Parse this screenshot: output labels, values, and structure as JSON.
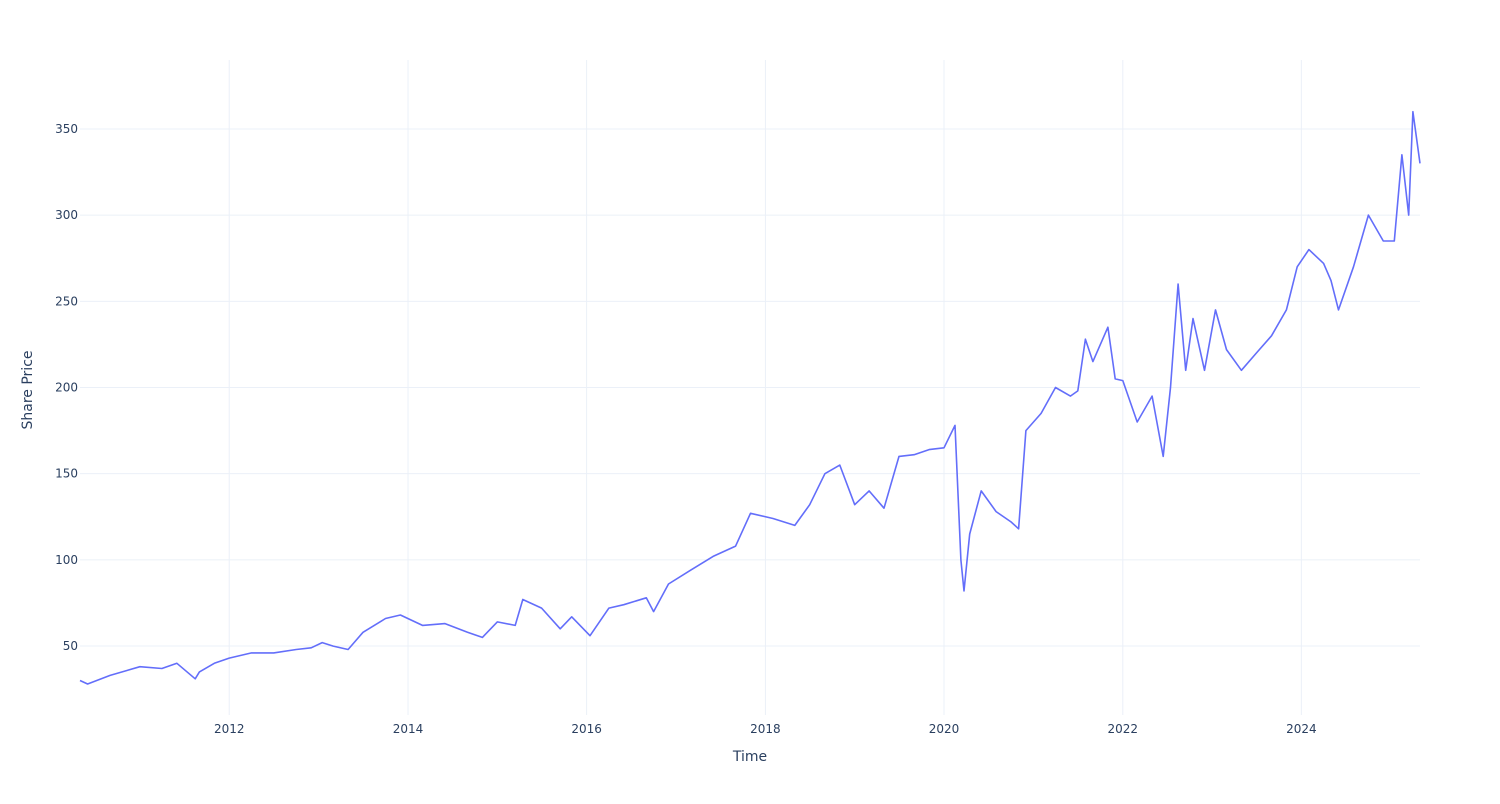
{
  "chart_data": {
    "type": "line",
    "title": "",
    "xlabel": "Time",
    "ylabel": "Share Price",
    "x_ticks": [
      "2012",
      "2014",
      "2016",
      "2018",
      "2020",
      "2022",
      "2024"
    ],
    "y_ticks": [
      50,
      100,
      150,
      200,
      250,
      300,
      350
    ],
    "xlim": [
      "2010-05-01",
      "2025-04-30"
    ],
    "ylim": [
      10,
      390
    ],
    "grid": true,
    "line_color": "#636efa",
    "grid_color": "#ebf0f8",
    "text_color": "#2a3f5f",
    "series": [
      {
        "x": [
          "2010-05-01",
          "2010-06-01",
          "2010-09-01",
          "2011-01-01",
          "2011-04-01",
          "2011-06-01",
          "2011-08-15",
          "2011-09-01",
          "2011-11-01",
          "2012-01-01",
          "2012-04-01",
          "2012-07-01",
          "2012-10-01",
          "2012-12-01",
          "2013-01-15",
          "2013-03-01",
          "2013-05-01",
          "2013-07-01",
          "2013-10-01",
          "2013-12-01",
          "2014-03-01",
          "2014-06-01",
          "2014-09-01",
          "2014-11-01",
          "2015-01-01",
          "2015-03-15",
          "2015-04-15",
          "2015-07-01",
          "2015-09-15",
          "2015-11-01",
          "2016-01-15",
          "2016-04-01",
          "2016-06-01",
          "2016-09-01",
          "2016-10-01",
          "2016-12-01",
          "2017-03-01",
          "2017-06-01",
          "2017-09-01",
          "2017-11-01",
          "2018-02-01",
          "2018-05-01",
          "2018-07-01",
          "2018-09-01",
          "2018-11-01",
          "2019-01-01",
          "2019-03-01",
          "2019-05-01",
          "2019-07-01",
          "2019-09-01",
          "2019-11-01",
          "2020-01-01",
          "2020-02-15",
          "2020-03-10",
          "2020-03-23",
          "2020-04-15",
          "2020-06-01",
          "2020-08-01",
          "2020-10-01",
          "2020-11-01",
          "2020-12-01",
          "2021-02-01",
          "2021-04-01",
          "2021-06-01",
          "2021-07-01",
          "2021-08-01",
          "2021-09-01",
          "2021-11-01",
          "2021-12-01",
          "2022-01-01",
          "2022-03-01",
          "2022-05-01",
          "2022-06-15",
          "2022-07-15",
          "2022-08-15",
          "2022-09-15",
          "2022-10-15",
          "2022-12-01",
          "2023-01-15",
          "2023-03-01",
          "2023-05-01",
          "2023-07-01",
          "2023-09-01",
          "2023-11-01",
          "2023-12-15",
          "2024-02-01",
          "2024-04-01",
          "2024-05-01",
          "2024-06-01",
          "2024-08-01",
          "2024-10-01",
          "2024-12-01",
          "2025-01-15",
          "2025-02-15",
          "2025-03-15",
          "2025-04-01",
          "2025-04-30"
        ],
        "y": [
          30,
          28,
          33,
          38,
          37,
          40,
          31,
          35,
          40,
          43,
          46,
          46,
          48,
          49,
          52,
          50,
          48,
          58,
          66,
          68,
          62,
          63,
          58,
          55,
          64,
          62,
          77,
          72,
          60,
          67,
          56,
          72,
          74,
          78,
          70,
          86,
          94,
          102,
          108,
          127,
          124,
          120,
          132,
          150,
          155,
          132,
          140,
          130,
          160,
          161,
          164,
          165,
          178,
          100,
          82,
          115,
          140,
          128,
          122,
          118,
          175,
          185,
          200,
          195,
          198,
          228,
          215,
          235,
          205,
          204,
          180,
          195,
          160,
          200,
          260,
          210,
          240,
          210,
          245,
          222,
          210,
          220,
          230,
          245,
          270,
          280,
          272,
          262,
          245,
          270,
          300,
          285,
          285,
          335,
          300,
          360,
          330
        ]
      }
    ]
  }
}
